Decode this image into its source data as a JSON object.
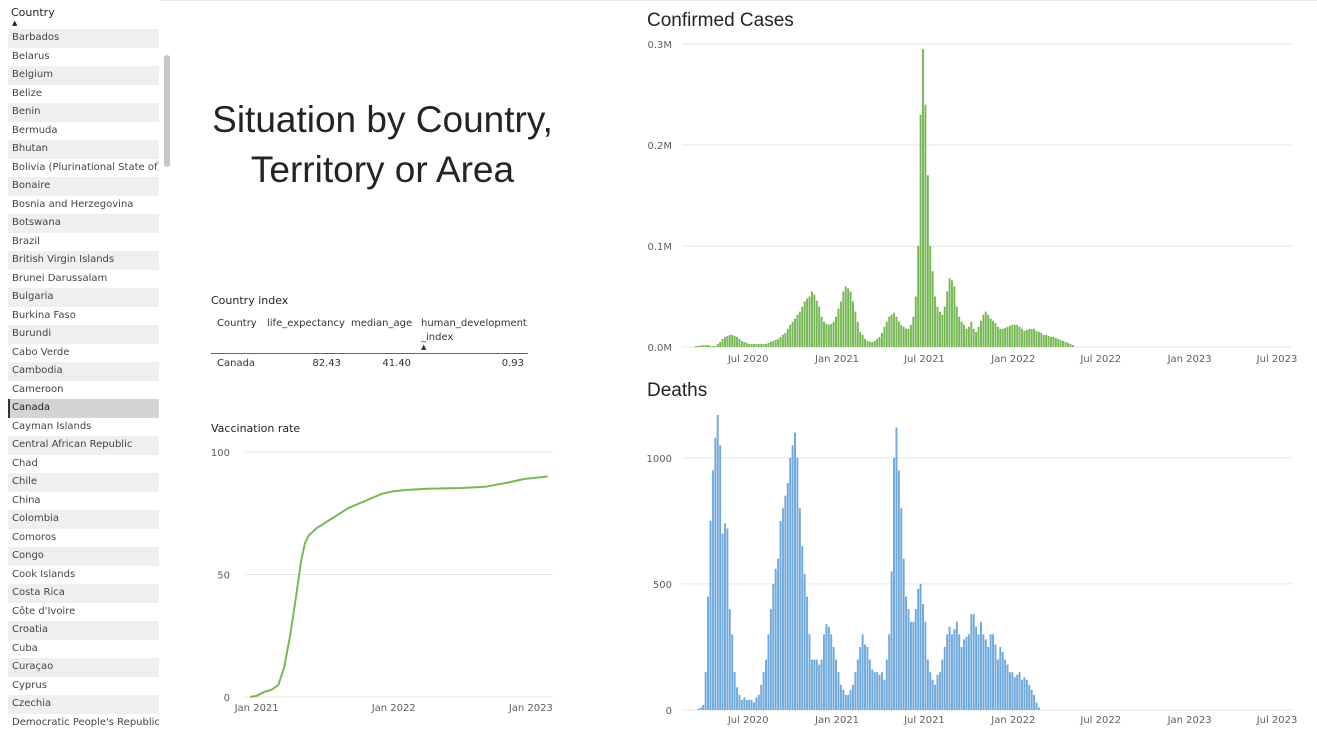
{
  "slicer": {
    "header": "Country",
    "sort_glyph": "▲",
    "selected": "Canada",
    "items": [
      "Barbados",
      "Belarus",
      "Belgium",
      "Belize",
      "Benin",
      "Bermuda",
      "Bhutan",
      "Bolivia (Plurinational State of)",
      "Bonaire",
      "Bosnia and Herzegovina",
      "Botswana",
      "Brazil",
      "British Virgin Islands",
      "Brunei Darussalam",
      "Bulgaria",
      "Burkina Faso",
      "Burundi",
      "Cabo Verde",
      "Cambodia",
      "Cameroon",
      "Canada",
      "Cayman Islands",
      "Central African Republic",
      "Chad",
      "Chile",
      "China",
      "Colombia",
      "Comoros",
      "Congo",
      "Cook Islands",
      "Costa Rica",
      "Côte d'Ivoire",
      "Croatia",
      "Cuba",
      "Curaçao",
      "Cyprus",
      "Czechia",
      "Democratic People's Republic"
    ]
  },
  "title": {
    "line1": "Situation by Country,",
    "line2": "Territory or Area"
  },
  "country_index": {
    "title": "Country index",
    "headers": [
      "Country",
      "life_expectancy",
      "median_age",
      "human_development_index"
    ],
    "header_line1": "human_development",
    "header_line2": "_index",
    "sort_glyph": "▲",
    "row": {
      "country": "Canada",
      "life_expectancy": "82.43",
      "median_age": "41.40",
      "human_development_index": "0.93"
    }
  },
  "colors": {
    "cases": "#76b855",
    "deaths": "#6fa8dc",
    "vaccination": "#76b855",
    "grid": "#e6e6e6"
  },
  "chart_data": [
    {
      "id": "vaccination",
      "type": "line",
      "title": "Vaccination rate",
      "x_ticks": [
        "Jan 2021",
        "Jan 2022",
        "Jan 2023"
      ],
      "x_domain": [
        "2020-12-01",
        "2023-03-01"
      ],
      "ylim": [
        0,
        100
      ],
      "y_ticks": [
        {
          "v": 0,
          "label": "0"
        },
        {
          "v": 50,
          "label": "50"
        },
        {
          "v": 100,
          "label": "100"
        }
      ],
      "points": [
        [
          "2020-12-15",
          0
        ],
        [
          "2021-01-01",
          0.5
        ],
        [
          "2021-01-20",
          2
        ],
        [
          "2021-02-10",
          3
        ],
        [
          "2021-02-28",
          5
        ],
        [
          "2021-03-15",
          12
        ],
        [
          "2021-03-31",
          25
        ],
        [
          "2021-04-15",
          40
        ],
        [
          "2021-04-30",
          56
        ],
        [
          "2021-05-10",
          63
        ],
        [
          "2021-05-20",
          66
        ],
        [
          "2021-06-10",
          69
        ],
        [
          "2021-07-01",
          71
        ],
        [
          "2021-08-01",
          74
        ],
        [
          "2021-09-01",
          77
        ],
        [
          "2021-10-01",
          79
        ],
        [
          "2021-11-01",
          81
        ],
        [
          "2021-12-01",
          83
        ],
        [
          "2022-01-01",
          84
        ],
        [
          "2022-02-01",
          84.5
        ],
        [
          "2022-04-01",
          85
        ],
        [
          "2022-07-01",
          85.3
        ],
        [
          "2022-09-01",
          85.8
        ],
        [
          "2022-11-01",
          87.5
        ],
        [
          "2022-12-15",
          89
        ],
        [
          "2023-01-15",
          89.5
        ],
        [
          "2023-02-15",
          90
        ]
      ]
    },
    {
      "id": "cases",
      "type": "bar",
      "title": "Confirmed Cases",
      "x_ticks": [
        "Jul 2020",
        "Jan 2021",
        "Jul 2021",
        "Jan 2022",
        "Jul 2022",
        "Jan 2023",
        "Jul 2023"
      ],
      "x_domain": [
        "2020-02-15",
        "2023-08-01"
      ],
      "bar_start": "2020-03-15",
      "bar_step_days": 5,
      "ylim": [
        0,
        300000
      ],
      "y_ticks": [
        {
          "v": 0,
          "label": "0.0M"
        },
        {
          "v": 100000,
          "label": "0.1M"
        },
        {
          "v": 200000,
          "label": "0.2M"
        },
        {
          "v": 300000,
          "label": "0.3M"
        }
      ],
      "values": [
        1000,
        1200,
        1500,
        1800,
        2000,
        2000,
        1000,
        1000,
        1000,
        3000,
        5000,
        8000,
        10000,
        11000,
        12000,
        12000,
        11000,
        10000,
        8000,
        6000,
        5000,
        4000,
        3000,
        3000,
        3000,
        3000,
        3000,
        3000,
        3000,
        3000,
        4000,
        5000,
        6000,
        7000,
        8000,
        10000,
        12000,
        14000,
        18000,
        22000,
        25000,
        28000,
        32000,
        35000,
        40000,
        45000,
        48000,
        50000,
        55000,
        52000,
        46000,
        40000,
        30000,
        25000,
        23000,
        22000,
        23000,
        25000,
        30000,
        38000,
        45000,
        55000,
        60000,
        58000,
        55000,
        45000,
        35000,
        25000,
        15000,
        12000,
        8000,
        6000,
        5000,
        5000,
        6000,
        8000,
        10000,
        14000,
        20000,
        25000,
        30000,
        32000,
        34000,
        30000,
        25000,
        22000,
        20000,
        18000,
        18000,
        22000,
        30000,
        50000,
        100000,
        230000,
        295000,
        240000,
        170000,
        100000,
        75000,
        50000,
        40000,
        35000,
        32000,
        40000,
        55000,
        68000,
        66000,
        60000,
        40000,
        30000,
        25000,
        22000,
        18000,
        20000,
        25000,
        18000,
        15000,
        20000,
        26000,
        32000,
        35000,
        32000,
        28000,
        26000,
        24000,
        20000,
        18000,
        18000,
        19000,
        20000,
        21000,
        22000,
        22000,
        22000,
        20000,
        18000,
        16000,
        17000,
        18000,
        18000,
        18000,
        16000,
        15000,
        14000,
        12000,
        12000,
        11000,
        10000,
        10000,
        9000,
        8000,
        7000,
        6000,
        5000,
        4000,
        3000,
        2000
      ],
      "last_tick_label": "Jul 2023"
    },
    {
      "id": "deaths",
      "type": "bar",
      "title": "Deaths",
      "x_ticks": [
        "Jul 2020",
        "Jan 2021",
        "Jul 2021",
        "Jan 2022",
        "Jul 2022",
        "Jan 2023",
        "Jul 2023"
      ],
      "x_domain": [
        "2020-02-15",
        "2023-08-01"
      ],
      "bar_start": "2020-03-20",
      "bar_step_days": 5,
      "ylim": [
        0,
        1150
      ],
      "y_ticks": [
        {
          "v": 0,
          "label": "0"
        },
        {
          "v": 500,
          "label": "500"
        },
        {
          "v": 1000,
          "label": "1000"
        }
      ],
      "values": [
        5,
        10,
        20,
        150,
        450,
        750,
        950,
        1080,
        1170,
        1050,
        700,
        740,
        720,
        400,
        300,
        150,
        90,
        60,
        40,
        50,
        40,
        40,
        40,
        30,
        50,
        60,
        100,
        150,
        200,
        300,
        400,
        500,
        560,
        600,
        750,
        800,
        850,
        900,
        1000,
        1050,
        1100,
        1000,
        800,
        650,
        540,
        450,
        300,
        200,
        200,
        200,
        180,
        200,
        300,
        340,
        330,
        300,
        250,
        200,
        150,
        100,
        80,
        60,
        60,
        80,
        100,
        150,
        200,
        250,
        300,
        260,
        250,
        200,
        160,
        150,
        150,
        140,
        150,
        120,
        200,
        300,
        550,
        1000,
        1120,
        950,
        800,
        600,
        450,
        400,
        350,
        350,
        400,
        480,
        500,
        420,
        350,
        200,
        150,
        120,
        100,
        140,
        150,
        200,
        250,
        300,
        330,
        300,
        320,
        350,
        300,
        250,
        280,
        290,
        300,
        380,
        380,
        330,
        300,
        350,
        300,
        280,
        250,
        300,
        300,
        260,
        200,
        250,
        230,
        200,
        180,
        150,
        150,
        130,
        140,
        150,
        120,
        130,
        120,
        100,
        80,
        60,
        30,
        10
      ],
      "last_tick_label": "Jul 2023"
    }
  ]
}
